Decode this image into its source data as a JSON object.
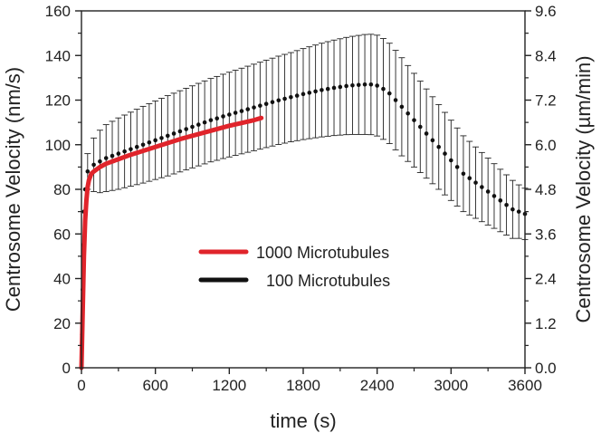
{
  "chart_data": {
    "type": "line",
    "xlabel": "time (s)",
    "ylabel_left": "Centrosome Velocity (nm/s)",
    "ylabel_right": "Centrosome Velocity (µm/min)",
    "xlim": [
      0,
      3600
    ],
    "ylim_left": [
      0,
      160
    ],
    "ylim_right": [
      0,
      9.6
    ],
    "x_ticks": [
      0,
      600,
      1200,
      1800,
      2400,
      3000,
      3600
    ],
    "x_tick_labels": [
      "0",
      "600",
      "1200",
      "1800",
      "2400",
      "3000",
      "3600"
    ],
    "y_left_ticks": [
      0,
      20,
      40,
      60,
      80,
      100,
      120,
      140,
      160
    ],
    "y_left_tick_labels": [
      "0",
      "20",
      "40",
      "60",
      "80",
      "100",
      "120",
      "140",
      "160"
    ],
    "y_right_ticks": [
      0,
      1.2,
      2.4,
      3.6,
      4.8,
      6.0,
      7.2,
      8.4,
      9.6
    ],
    "y_right_tick_labels": [
      "0.0",
      "1.2",
      "2.4",
      "3.6",
      "4.8",
      "6.0",
      "7.2",
      "8.4",
      "9.6"
    ],
    "legend_position": "center",
    "grid": false,
    "series": [
      {
        "name": "1000 Microtubules",
        "color": "#e0242b",
        "style": "line",
        "x": [
          0,
          10,
          20,
          30,
          40,
          50,
          60,
          80,
          100,
          150,
          200,
          300,
          400,
          600,
          800,
          1000,
          1200,
          1400,
          1460
        ],
        "y": [
          0,
          25,
          50,
          66,
          75,
          81,
          84,
          87,
          88,
          90,
          91.5,
          93.5,
          95.5,
          99,
          102.5,
          105.5,
          108.5,
          111,
          112
        ]
      },
      {
        "name": "100 Microtubules",
        "color": "#111111",
        "style": "points_with_error_bars",
        "x": [
          0,
          50,
          100,
          150,
          200,
          250,
          300,
          350,
          400,
          450,
          500,
          550,
          600,
          650,
          700,
          750,
          800,
          850,
          900,
          950,
          1000,
          1050,
          1100,
          1150,
          1200,
          1250,
          1300,
          1350,
          1400,
          1450,
          1500,
          1550,
          1600,
          1650,
          1700,
          1750,
          1800,
          1850,
          1900,
          1950,
          2000,
          2050,
          2100,
          2150,
          2200,
          2250,
          2300,
          2350,
          2400,
          2450,
          2500,
          2550,
          2600,
          2650,
          2700,
          2750,
          2800,
          2850,
          2900,
          2950,
          3000,
          3050,
          3100,
          3150,
          3200,
          3250,
          3300,
          3350,
          3400,
          3450,
          3500,
          3550,
          3600
        ],
        "y": [
          0,
          88,
          91,
          92.5,
          94,
          95,
          96,
          97,
          98,
          99,
          100,
          101,
          102,
          103,
          104,
          105,
          106,
          107,
          108,
          109,
          110,
          111,
          111.8,
          112.7,
          113.5,
          114.3,
          115.1,
          115.9,
          116.7,
          117.5,
          118.3,
          119.1,
          119.9,
          120.6,
          121.3,
          122,
          122.7,
          123.3,
          123.9,
          124.5,
          125,
          125.5,
          125.9,
          126.3,
          126.6,
          126.8,
          127,
          127,
          126.5,
          125,
          123,
          120,
          117,
          114,
          111,
          108,
          105,
          102,
          99,
          96,
          93,
          90,
          87,
          85,
          83,
          81,
          79,
          77,
          75,
          73,
          71,
          70,
          69
        ],
        "error": [
          0,
          8,
          12,
          14,
          15,
          15.5,
          16,
          16.3,
          16.6,
          16.9,
          17.2,
          17.4,
          17.6,
          17.8,
          18,
          18.1,
          18.2,
          18.3,
          18.4,
          18.5,
          18.6,
          18.7,
          18.8,
          18.9,
          19,
          19.1,
          19.2,
          19.3,
          19.4,
          19.5,
          19.6,
          19.7,
          19.8,
          19.9,
          20,
          20.2,
          20.4,
          20.6,
          20.8,
          21,
          21.2,
          21.4,
          21.6,
          21.8,
          22,
          22.2,
          22.4,
          22.5,
          22.6,
          22.6,
          22.5,
          22.3,
          22,
          21.5,
          21,
          20.5,
          20,
          19.5,
          19,
          18.5,
          18,
          17.5,
          17,
          16.5,
          16,
          15.5,
          15,
          14.5,
          14,
          13.5,
          13,
          12,
          11.5
        ]
      }
    ]
  }
}
